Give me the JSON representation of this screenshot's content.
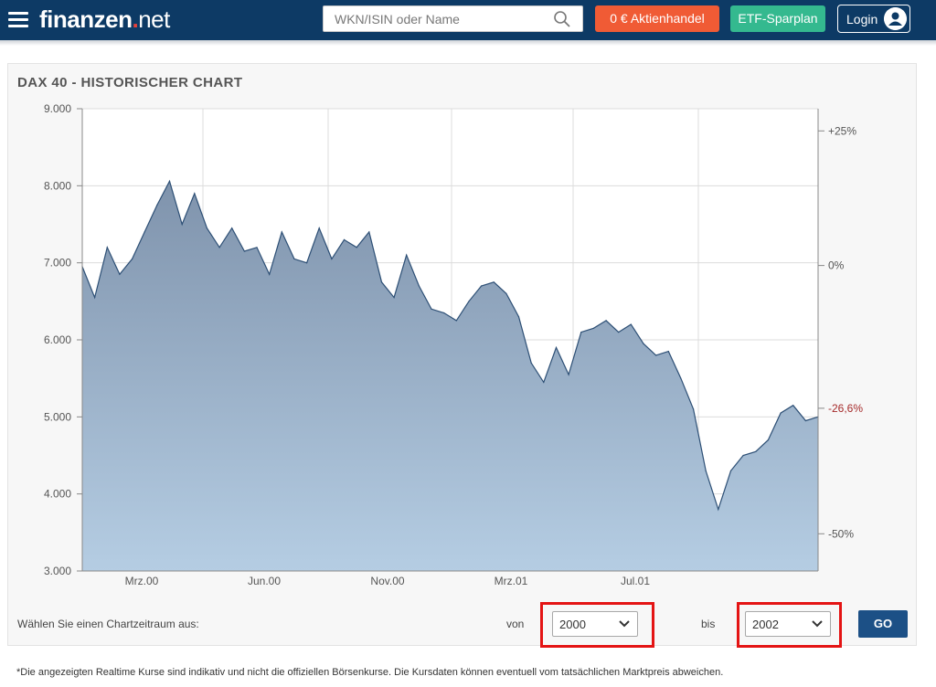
{
  "header": {
    "logo_part1": "finanzen",
    "logo_dot": ".",
    "logo_part2": "net",
    "search_placeholder": "WKN/ISIN oder Name",
    "aktienhandel_label": "0 € Aktienhandel",
    "etf_label": "ETF-Sparplan",
    "login_label": "Login",
    "brand_color": "#0d3a65",
    "aktienhandel_color": "#f05b35",
    "etf_color": "#34b98f"
  },
  "chart": {
    "title": "DAX 40 - HISTORISCHER CHART",
    "period_prompt": "Wählen Sie einen Chartzeitraum aus:",
    "von_label": "von",
    "bis_label": "bis",
    "von_value": "2000",
    "bis_value": "2002",
    "go_label": "GO"
  },
  "chart_data": {
    "type": "area",
    "title": "DAX 40 - HISTORISCHER CHART",
    "ylim": [
      3000,
      9000
    ],
    "y_ticks": [
      "9.000",
      "8.000",
      "7.000",
      "6.000",
      "5.000",
      "4.000",
      "3.000"
    ],
    "y_tick_values": [
      9000,
      8000,
      7000,
      6000,
      5000,
      4000,
      3000
    ],
    "x_ticks": [
      "Mrz.00",
      "Jun.00",
      "Nov.00",
      "Mrz.01",
      "Jul.01"
    ],
    "right_axis": [
      {
        "label": "+25%",
        "value": 8712
      },
      {
        "label": "0%",
        "value": 6965
      },
      {
        "label": "-26,6%",
        "value": 5112,
        "highlight": true
      },
      {
        "label": "-50%",
        "value": 3483
      }
    ],
    "grid": true,
    "series": [
      {
        "x": [
          "2000-01",
          "2000-01",
          "2000-02",
          "2000-02",
          "2000-02",
          "2000-03",
          "2000-03",
          "2000-03",
          "2000-03",
          "2000-04",
          "2000-04",
          "2000-04",
          "2000-05",
          "2000-05",
          "2000-05",
          "2000-06",
          "2000-06",
          "2000-07",
          "2000-07",
          "2000-08",
          "2000-08",
          "2000-09",
          "2000-09",
          "2000-09",
          "2000-10",
          "2000-10",
          "2000-10",
          "2000-11",
          "2000-11",
          "2000-12",
          "2000-12",
          "2000-12",
          "2001-01",
          "2001-01",
          "2001-02",
          "2001-02",
          "2001-03",
          "2001-03",
          "2001-03",
          "2001-04",
          "2001-04",
          "2001-05",
          "2001-05",
          "2001-06",
          "2001-06",
          "2001-07",
          "2001-07",
          "2001-08",
          "2001-08",
          "2001-09",
          "2001-09",
          "2001-09",
          "2001-09",
          "2001-10",
          "2001-10",
          "2001-11",
          "2001-11",
          "2001-12",
          "2001-12",
          "2001-12"
        ],
        "values": [
          6950,
          6550,
          7200,
          6850,
          7050,
          7400,
          7750,
          8060,
          7500,
          7900,
          7450,
          7200,
          7450,
          7150,
          7200,
          6850,
          7400,
          7050,
          7000,
          7450,
          7050,
          7300,
          7200,
          7400,
          6750,
          6550,
          7100,
          6700,
          6400,
          6350,
          6250,
          6500,
          6700,
          6750,
          6600,
          6300,
          5700,
          5450,
          5900,
          5550,
          6100,
          6150,
          6250,
          6100,
          6200,
          5950,
          5800,
          5850,
          5500,
          5100,
          4300,
          3800,
          4300,
          4500,
          4550,
          4700,
          5050,
          5150,
          4950,
          5000
        ]
      }
    ]
  },
  "disclaimer": "*Die angezeigten Realtime Kurse sind indikativ und nicht die offiziellen Börsenkurse. Die Kursdaten können eventuell vom tatsächlichen Marktpreis abweichen."
}
